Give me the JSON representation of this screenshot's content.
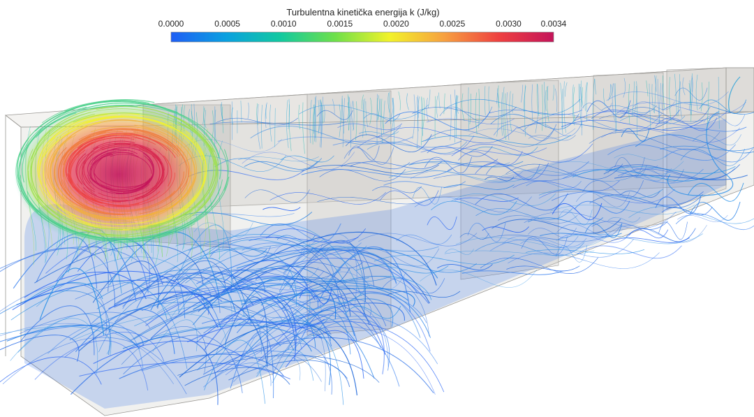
{
  "scene": {
    "background_color": "#ffffff",
    "domain_fill": "#d8d6d2",
    "domain_edge": "#9a9894"
  },
  "colorbar": {
    "title": "Turbulentna kinetička energija k (J/kg)",
    "min": 0,
    "max": 0.0034,
    "ticks": [
      {
        "label": "0.0000",
        "value": 0.0
      },
      {
        "label": "0.0005",
        "value": 0.0005
      },
      {
        "label": "0.0010",
        "value": 0.001
      },
      {
        "label": "0.0015",
        "value": 0.0015
      },
      {
        "label": "0.0020",
        "value": 0.002
      },
      {
        "label": "0.0025",
        "value": 0.0025
      },
      {
        "label": "0.0030",
        "value": 0.003
      },
      {
        "label": "0.0034",
        "value": 0.0034
      }
    ],
    "colormap": [
      "#1f5ef5",
      "#0aa0e0",
      "#12c9a0",
      "#6ee04a",
      "#f2f22a",
      "#f7a040",
      "#ee4040",
      "#c4145a"
    ]
  }
}
